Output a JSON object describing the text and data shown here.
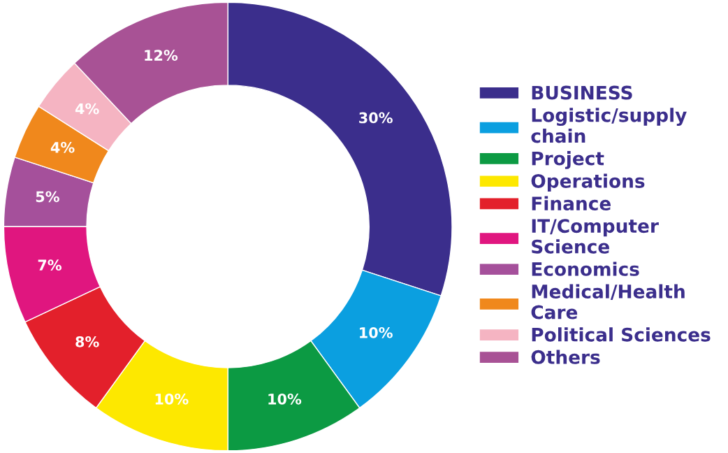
{
  "chart_data": {
    "type": "donut",
    "categories": [
      "BUSINESS",
      "Logistic/supply\nchain",
      "Project",
      "Operations",
      "Finance",
      "IT/Computer\nScience",
      "Economics",
      "Medical/Health\nCare",
      "Political Sciences",
      "Others"
    ],
    "values": [
      30,
      10,
      10,
      10,
      8,
      7,
      5,
      4,
      4,
      12
    ],
    "value_labels": [
      "30%",
      "10%",
      "10%",
      "10%",
      "8%",
      "7%",
      "5%",
      "4%",
      "4%",
      "12%"
    ],
    "colors": [
      "#3b2e8c",
      "#0b9fe0",
      "#0c9a43",
      "#fde800",
      "#e3202b",
      "#e0167f",
      "#a5509b",
      "#f0881c",
      "#f5b4c2",
      "#a85295"
    ],
    "legend": "right"
  }
}
